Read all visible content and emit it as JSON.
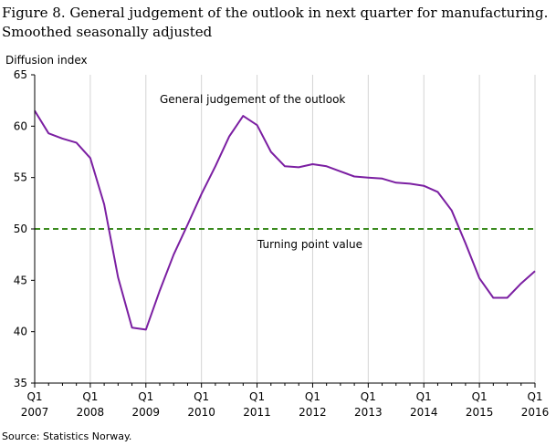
{
  "figure": {
    "title_line1": "Figure 8. General judgement of the outlook in next quarter for manufacturing.",
    "title_line2": "Smoothed seasonally adjusted",
    "source": "Source: Statistics Norway."
  },
  "chart_data": {
    "type": "line",
    "ylabel": "Diffusion  index",
    "ylim": [
      35,
      65
    ],
    "yticks": [
      35,
      40,
      45,
      50,
      55,
      60,
      65
    ],
    "xlim": [
      2007.0,
      2016.0
    ],
    "xticks": [
      {
        "top": "Q1",
        "bottom": "2007",
        "x": 2007
      },
      {
        "top": "Q1",
        "bottom": "2008",
        "x": 2008
      },
      {
        "top": "Q1",
        "bottom": "2009",
        "x": 2009
      },
      {
        "top": "Q1",
        "bottom": "2010",
        "x": 2010
      },
      {
        "top": "Q1",
        "bottom": "2011",
        "x": 2011
      },
      {
        "top": "Q1",
        "bottom": "2012",
        "x": 2012
      },
      {
        "top": "Q1",
        "bottom": "2013",
        "x": 2013
      },
      {
        "top": "Q1",
        "bottom": "2014",
        "x": 2014
      },
      {
        "top": "Q1",
        "bottom": "2015",
        "x": 2015
      },
      {
        "top": "Q1",
        "bottom": "2016",
        "x": 2016
      }
    ],
    "grid": "vertical",
    "series": [
      {
        "name": "General  judgement  of the outlook",
        "color": "#7b1fa2",
        "x": [
          2007.0,
          2007.25,
          2007.5,
          2007.75,
          2008.0,
          2008.25,
          2008.5,
          2008.75,
          2009.0,
          2009.25,
          2009.5,
          2009.75,
          2010.0,
          2010.25,
          2010.5,
          2010.75,
          2011.0,
          2011.25,
          2011.5,
          2011.75,
          2012.0,
          2012.25,
          2012.5,
          2012.75,
          2013.0,
          2013.25,
          2013.5,
          2013.75,
          2014.0,
          2014.25,
          2014.5,
          2014.75,
          2015.0,
          2015.25,
          2015.5,
          2015.75,
          2016.0
        ],
        "values": [
          61.5,
          59.3,
          58.8,
          58.4,
          56.9,
          52.4,
          45.3,
          40.4,
          40.2,
          44.0,
          47.5,
          50.4,
          53.4,
          56.1,
          59.0,
          61.0,
          60.1,
          57.5,
          56.1,
          56.0,
          56.3,
          56.1,
          55.6,
          55.1,
          55.0,
          54.9,
          54.5,
          54.4,
          54.2,
          53.6,
          51.8,
          48.6,
          45.2,
          43.3,
          43.3,
          44.7,
          45.9
        ]
      }
    ],
    "reference_line": {
      "value": 50,
      "label": "Turning  point value",
      "color": "#3a8a1e",
      "style": "dashed"
    }
  }
}
